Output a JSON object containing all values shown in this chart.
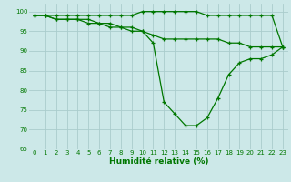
{
  "xlabel": "Humidité relative (%)",
  "bg_color": "#cce8e8",
  "grid_color": "#aacccc",
  "line_color": "#007700",
  "xlim": [
    -0.5,
    23.5
  ],
  "ylim": [
    65,
    102
  ],
  "xticks": [
    0,
    1,
    2,
    3,
    4,
    5,
    6,
    7,
    8,
    9,
    10,
    11,
    12,
    13,
    14,
    15,
    16,
    17,
    18,
    19,
    20,
    21,
    22,
    23
  ],
  "yticks": [
    65,
    70,
    75,
    80,
    85,
    90,
    95,
    100
  ],
  "hours": [
    0,
    1,
    2,
    3,
    4,
    5,
    6,
    7,
    8,
    9,
    10,
    11,
    12,
    13,
    14,
    15,
    16,
    17,
    18,
    19,
    20,
    21,
    22,
    23
  ],
  "line_max": [
    99,
    99,
    99,
    99,
    99,
    99,
    99,
    99,
    99,
    99,
    100,
    100,
    100,
    100,
    100,
    100,
    99,
    99,
    99,
    99,
    99,
    99,
    99,
    91
  ],
  "line_mean": [
    99,
    99,
    98,
    98,
    98,
    98,
    97,
    97,
    96,
    96,
    95,
    94,
    93,
    93,
    93,
    93,
    93,
    93,
    92,
    92,
    91,
    91,
    91,
    91
  ],
  "line_min": [
    99,
    99,
    98,
    98,
    98,
    97,
    97,
    96,
    96,
    95,
    95,
    92,
    77,
    74,
    71,
    71,
    73,
    78,
    84,
    87,
    88,
    88,
    89,
    91
  ]
}
